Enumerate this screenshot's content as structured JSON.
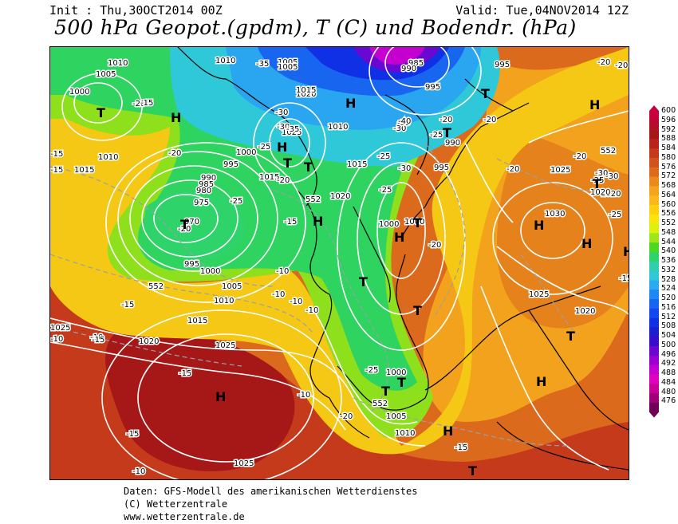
{
  "header": {
    "init": "Init : Thu,30OCT2014 00Z",
    "valid": "Valid: Tue,04NOV2014 12Z",
    "title": "500 hPa Geopot.(gpdm), T (C) und Bodendr. (hPa)"
  },
  "legend": {
    "labels": [
      "600",
      "596",
      "592",
      "588",
      "584",
      "580",
      "576",
      "572",
      "568",
      "564",
      "560",
      "556",
      "552",
      "548",
      "544",
      "540",
      "536",
      "532",
      "528",
      "524",
      "520",
      "516",
      "512",
      "508",
      "504",
      "500",
      "496",
      "492",
      "488",
      "484",
      "480",
      "476"
    ],
    "colors": [
      "#c8003c",
      "#b2102a",
      "#a61818",
      "#b8241c",
      "#c43a1a",
      "#d2521e",
      "#de6a1c",
      "#ea8a1c",
      "#f4a41c",
      "#fab81a",
      "#fdd10e",
      "#f8e60a",
      "#dcf00c",
      "#9ee61c",
      "#4cd81e",
      "#2ed36a",
      "#2ecfaa",
      "#2ec8d8",
      "#2aaaf0",
      "#1e88f4",
      "#1866f0",
      "#1448ee",
      "#1030e6",
      "#1c20cc",
      "#3c0ccc",
      "#6808d0",
      "#9a00d2",
      "#c400d0",
      "#e000c0",
      "#c8009a",
      "#a00078",
      "#700058"
    ]
  },
  "map": {
    "pressure_labels": [
      {
        "t": "1010"
      },
      {
        "t": "1005"
      },
      {
        "t": "1000"
      },
      {
        "t": "1010"
      },
      {
        "t": "1015"
      },
      {
        "t": "1010"
      },
      {
        "t": "1005"
      },
      {
        "t": "1005"
      },
      {
        "t": "1020"
      },
      {
        "t": "1015"
      },
      {
        "t": "1010"
      },
      {
        "t": "1025"
      },
      {
        "t": "1000"
      },
      {
        "t": "995"
      },
      {
        "t": "990"
      },
      {
        "t": "985"
      },
      {
        "t": "980"
      },
      {
        "t": "975"
      },
      {
        "t": "970"
      },
      {
        "t": "995"
      },
      {
        "t": "1000"
      },
      {
        "t": "1005"
      },
      {
        "t": "1010"
      },
      {
        "t": "1015"
      },
      {
        "t": "1020"
      },
      {
        "t": "1025"
      },
      {
        "t": "1025"
      },
      {
        "t": "1015"
      },
      {
        "t": "1020"
      },
      {
        "t": "1015"
      },
      {
        "t": "1000"
      },
      {
        "t": "1000"
      },
      {
        "t": "995"
      },
      {
        "t": "990"
      },
      {
        "t": "985"
      },
      {
        "t": "990"
      },
      {
        "t": "995"
      },
      {
        "t": "995"
      },
      {
        "t": "1025"
      },
      {
        "t": "1030"
      },
      {
        "t": "1020"
      },
      {
        "t": "1020"
      },
      {
        "t": "1025"
      },
      {
        "t": "1020"
      },
      {
        "t": "1000"
      },
      {
        "t": "1005"
      },
      {
        "t": "1010"
      },
      {
        "t": "1025"
      }
    ],
    "temp_labels": [
      {
        "t": "-20"
      },
      {
        "t": "-15"
      },
      {
        "t": "-15"
      },
      {
        "t": "-20"
      },
      {
        "t": "-25"
      },
      {
        "t": "-30"
      },
      {
        "t": "-35"
      },
      {
        "t": "-30"
      },
      {
        "t": "-25"
      },
      {
        "t": "-20"
      },
      {
        "t": "-25"
      },
      {
        "t": "-20"
      },
      {
        "t": "-15"
      },
      {
        "t": "-10"
      },
      {
        "t": "-15"
      },
      {
        "t": "-10"
      },
      {
        "t": "-10"
      },
      {
        "t": "-10"
      },
      {
        "t": "-10"
      },
      {
        "t": "-10"
      },
      {
        "t": "-10"
      },
      {
        "t": "-15"
      },
      {
        "t": "-25"
      },
      {
        "t": "-30"
      },
      {
        "t": "-35"
      },
      {
        "t": "-40"
      },
      {
        "t": "-30"
      },
      {
        "t": "-25"
      },
      {
        "t": "-20"
      },
      {
        "t": "-20"
      },
      {
        "t": "-20"
      },
      {
        "t": "-20"
      },
      {
        "t": "-25"
      },
      {
        "t": "-30"
      },
      {
        "t": "-25"
      },
      {
        "t": "-20"
      },
      {
        "t": "-20"
      },
      {
        "t": "-15"
      },
      {
        "t": "-20"
      },
      {
        "t": "-15"
      },
      {
        "t": "-15"
      },
      {
        "t": "-25"
      },
      {
        "t": "-20"
      },
      {
        "t": "-15"
      },
      {
        "t": "-15"
      },
      {
        "t": "-10"
      },
      {
        "t": "-30"
      },
      {
        "t": "-35"
      }
    ],
    "gpdm_labels": [
      {
        "t": "552"
      },
      {
        "t": "552"
      },
      {
        "t": "552"
      },
      {
        "t": "552"
      }
    ],
    "symbols": [
      {
        "t": "H"
      },
      {
        "t": "T"
      },
      {
        "t": "H"
      },
      {
        "t": "T"
      },
      {
        "t": "H"
      },
      {
        "t": "T"
      },
      {
        "t": "H"
      },
      {
        "t": "T"
      },
      {
        "t": "T"
      },
      {
        "t": "H"
      },
      {
        "t": "T"
      },
      {
        "t": "T"
      },
      {
        "t": "H"
      },
      {
        "t": "T"
      },
      {
        "t": "T"
      },
      {
        "t": "T"
      },
      {
        "t": "H"
      },
      {
        "t": "H"
      },
      {
        "t": "T"
      },
      {
        "t": "H"
      },
      {
        "t": "T"
      },
      {
        "t": "H"
      },
      {
        "t": "T"
      },
      {
        "t": "H"
      },
      {
        "t": "T"
      },
      {
        "t": "H"
      }
    ]
  },
  "footer": {
    "line1": "Daten: GFS-Modell des amerikanischen Wetterdienstes",
    "line2": "(C) Wetterzentrale",
    "line3": "www.wetterzentrale.de"
  }
}
